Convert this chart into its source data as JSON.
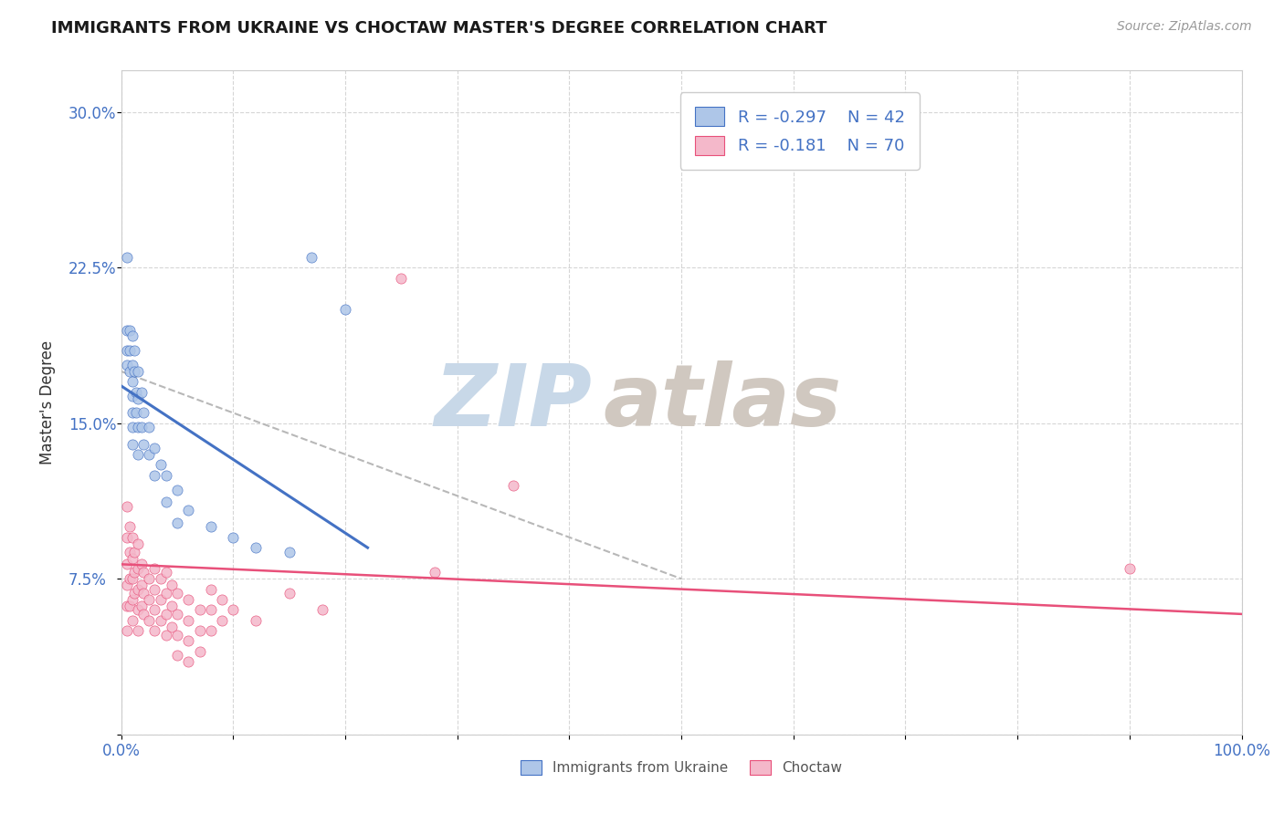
{
  "title": "IMMIGRANTS FROM UKRAINE VS CHOCTAW MASTER'S DEGREE CORRELATION CHART",
  "source_text": "Source: ZipAtlas.com",
  "ylabel": "Master's Degree",
  "xlim": [
    0.0,
    1.0
  ],
  "ylim": [
    0.0,
    0.32
  ],
  "xticks": [
    0.0,
    0.1,
    0.2,
    0.3,
    0.4,
    0.5,
    0.6,
    0.7,
    0.8,
    0.9,
    1.0
  ],
  "xtick_labels": [
    "0.0%",
    "",
    "",
    "",
    "",
    "",
    "",
    "",
    "",
    "",
    "100.0%"
  ],
  "yticks": [
    0.0,
    0.075,
    0.15,
    0.225,
    0.3
  ],
  "ytick_labels": [
    "",
    "7.5%",
    "15.0%",
    "22.5%",
    "30.0%"
  ],
  "R_ukraine": -0.297,
  "N_ukraine": 42,
  "R_choctaw": -0.181,
  "N_choctaw": 70,
  "ukraine_color": "#aec6e8",
  "ukraine_line_color": "#4472c4",
  "choctaw_color": "#f4b8ca",
  "choctaw_line_color": "#e8507a",
  "trend_line_color": "#b8b8b8",
  "watermark_zip_color": "#c8d8e8",
  "watermark_atlas_color": "#d0c8c0",
  "ukraine_line_x0": 0.0,
  "ukraine_line_y0": 0.168,
  "ukraine_line_x1": 0.22,
  "ukraine_line_y1": 0.09,
  "choctaw_line_x0": 0.0,
  "choctaw_line_y0": 0.082,
  "choctaw_line_x1": 1.0,
  "choctaw_line_y1": 0.058,
  "dashed_line_x0": 0.0,
  "dashed_line_y0": 0.175,
  "dashed_line_x1": 0.5,
  "dashed_line_y1": 0.075,
  "ukraine_scatter": [
    [
      0.005,
      0.23
    ],
    [
      0.005,
      0.195
    ],
    [
      0.005,
      0.185
    ],
    [
      0.005,
      0.178
    ],
    [
      0.008,
      0.195
    ],
    [
      0.008,
      0.185
    ],
    [
      0.008,
      0.175
    ],
    [
      0.01,
      0.192
    ],
    [
      0.01,
      0.178
    ],
    [
      0.01,
      0.17
    ],
    [
      0.01,
      0.163
    ],
    [
      0.01,
      0.155
    ],
    [
      0.01,
      0.148
    ],
    [
      0.01,
      0.14
    ],
    [
      0.012,
      0.185
    ],
    [
      0.012,
      0.175
    ],
    [
      0.013,
      0.165
    ],
    [
      0.013,
      0.155
    ],
    [
      0.015,
      0.175
    ],
    [
      0.015,
      0.162
    ],
    [
      0.015,
      0.148
    ],
    [
      0.015,
      0.135
    ],
    [
      0.018,
      0.165
    ],
    [
      0.018,
      0.148
    ],
    [
      0.02,
      0.155
    ],
    [
      0.02,
      0.14
    ],
    [
      0.025,
      0.148
    ],
    [
      0.025,
      0.135
    ],
    [
      0.03,
      0.138
    ],
    [
      0.03,
      0.125
    ],
    [
      0.035,
      0.13
    ],
    [
      0.04,
      0.125
    ],
    [
      0.04,
      0.112
    ],
    [
      0.05,
      0.118
    ],
    [
      0.05,
      0.102
    ],
    [
      0.06,
      0.108
    ],
    [
      0.08,
      0.1
    ],
    [
      0.1,
      0.095
    ],
    [
      0.12,
      0.09
    ],
    [
      0.15,
      0.088
    ],
    [
      0.17,
      0.23
    ],
    [
      0.2,
      0.205
    ]
  ],
  "choctaw_scatter": [
    [
      0.005,
      0.11
    ],
    [
      0.005,
      0.095
    ],
    [
      0.005,
      0.082
    ],
    [
      0.005,
      0.072
    ],
    [
      0.005,
      0.062
    ],
    [
      0.005,
      0.05
    ],
    [
      0.008,
      0.1
    ],
    [
      0.008,
      0.088
    ],
    [
      0.008,
      0.075
    ],
    [
      0.008,
      0.062
    ],
    [
      0.01,
      0.095
    ],
    [
      0.01,
      0.085
    ],
    [
      0.01,
      0.075
    ],
    [
      0.01,
      0.065
    ],
    [
      0.01,
      0.055
    ],
    [
      0.012,
      0.088
    ],
    [
      0.012,
      0.078
    ],
    [
      0.012,
      0.068
    ],
    [
      0.015,
      0.092
    ],
    [
      0.015,
      0.08
    ],
    [
      0.015,
      0.07
    ],
    [
      0.015,
      0.06
    ],
    [
      0.015,
      0.05
    ],
    [
      0.018,
      0.082
    ],
    [
      0.018,
      0.072
    ],
    [
      0.018,
      0.062
    ],
    [
      0.02,
      0.078
    ],
    [
      0.02,
      0.068
    ],
    [
      0.02,
      0.058
    ],
    [
      0.025,
      0.075
    ],
    [
      0.025,
      0.065
    ],
    [
      0.025,
      0.055
    ],
    [
      0.03,
      0.08
    ],
    [
      0.03,
      0.07
    ],
    [
      0.03,
      0.06
    ],
    [
      0.03,
      0.05
    ],
    [
      0.035,
      0.075
    ],
    [
      0.035,
      0.065
    ],
    [
      0.035,
      0.055
    ],
    [
      0.04,
      0.078
    ],
    [
      0.04,
      0.068
    ],
    [
      0.04,
      0.058
    ],
    [
      0.04,
      0.048
    ],
    [
      0.045,
      0.072
    ],
    [
      0.045,
      0.062
    ],
    [
      0.045,
      0.052
    ],
    [
      0.05,
      0.068
    ],
    [
      0.05,
      0.058
    ],
    [
      0.05,
      0.048
    ],
    [
      0.05,
      0.038
    ],
    [
      0.06,
      0.065
    ],
    [
      0.06,
      0.055
    ],
    [
      0.06,
      0.045
    ],
    [
      0.06,
      0.035
    ],
    [
      0.07,
      0.06
    ],
    [
      0.07,
      0.05
    ],
    [
      0.07,
      0.04
    ],
    [
      0.08,
      0.07
    ],
    [
      0.08,
      0.06
    ],
    [
      0.08,
      0.05
    ],
    [
      0.09,
      0.065
    ],
    [
      0.09,
      0.055
    ],
    [
      0.1,
      0.06
    ],
    [
      0.12,
      0.055
    ],
    [
      0.15,
      0.068
    ],
    [
      0.18,
      0.06
    ],
    [
      0.25,
      0.22
    ],
    [
      0.28,
      0.078
    ],
    [
      0.35,
      0.12
    ],
    [
      0.9,
      0.08
    ]
  ]
}
